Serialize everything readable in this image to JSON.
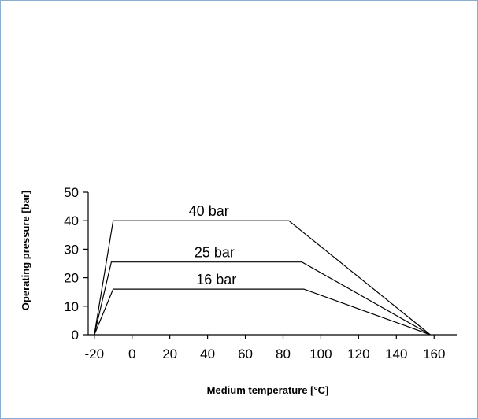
{
  "chart_data": {
    "type": "line",
    "title": "",
    "xlabel": "Medium temperature [°C]",
    "ylabel": "Operating pressure [bar]",
    "xlim": [
      -27,
      172
    ],
    "ylim": [
      0,
      50
    ],
    "x_ticks": [
      -20,
      0,
      20,
      40,
      60,
      80,
      100,
      120,
      140,
      160
    ],
    "y_ticks": [
      0,
      10,
      20,
      30,
      40,
      50
    ],
    "x_tick_labels": [
      "-20",
      "0",
      "20",
      "40",
      "60",
      "80",
      "100",
      "120",
      "140",
      "160"
    ],
    "y_tick_labels": [
      "0",
      "10",
      "20",
      "30",
      "40",
      "50"
    ],
    "grid": false,
    "line_color": "#000000",
    "series": [
      {
        "name": "40 bar",
        "x": [
          -20,
          -10,
          83,
          158
        ],
        "y": [
          0,
          40,
          40,
          0
        ]
      },
      {
        "name": "25 bar",
        "x": [
          -20,
          -11,
          90,
          158
        ],
        "y": [
          0,
          25.5,
          25.5,
          0
        ]
      },
      {
        "name": "16 bar",
        "x": [
          -20,
          -10,
          91,
          158
        ],
        "y": [
          0,
          16,
          16,
          0
        ]
      }
    ]
  }
}
